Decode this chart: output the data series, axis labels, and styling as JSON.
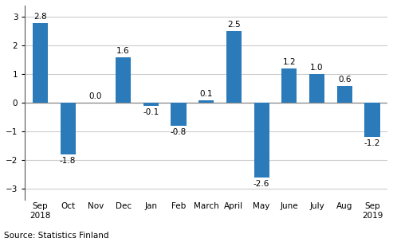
{
  "categories": [
    "Sep\n2018",
    "Oct",
    "Nov",
    "Dec",
    "Jan",
    "Feb",
    "March",
    "April",
    "May",
    "June",
    "July",
    "Aug",
    "Sep\n2019"
  ],
  "values": [
    2.8,
    -1.8,
    0.0,
    1.6,
    -0.1,
    -0.8,
    0.1,
    2.5,
    -2.6,
    1.2,
    1.0,
    0.6,
    -1.2
  ],
  "ylim": [
    -3.4,
    3.4
  ],
  "yticks": [
    -3,
    -2,
    -1,
    0,
    1,
    2,
    3
  ],
  "source_text": "Source: Statistics Finland",
  "bar_width": 0.55,
  "label_fontsize": 7.5,
  "tick_fontsize": 7.5,
  "source_fontsize": 7.5,
  "background_color": "#ffffff",
  "grid_color": "#cccccc",
  "bar_hex": "#2b7bba",
  "zero_line_color": "#888888",
  "spine_color": "#555555"
}
